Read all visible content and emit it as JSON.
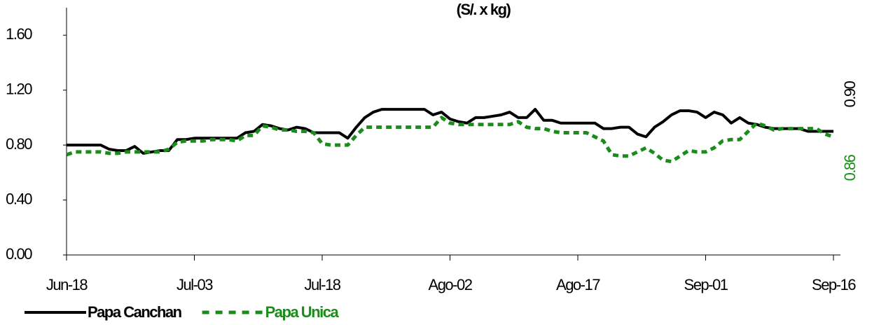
{
  "chart_data": {
    "type": "line",
    "title": "(S/. x kg)",
    "categories": [
      "Jun-18",
      null,
      null,
      null,
      null,
      null,
      null,
      null,
      null,
      null,
      null,
      null,
      null,
      null,
      null,
      "Jul-03",
      null,
      null,
      null,
      null,
      null,
      null,
      null,
      null,
      null,
      null,
      null,
      null,
      null,
      null,
      "Jul-18",
      null,
      null,
      null,
      null,
      null,
      null,
      null,
      null,
      null,
      null,
      null,
      null,
      null,
      null,
      "Ago-02",
      null,
      null,
      null,
      null,
      null,
      null,
      null,
      null,
      null,
      null,
      null,
      null,
      null,
      null,
      "Ago-17",
      null,
      null,
      null,
      null,
      null,
      null,
      null,
      null,
      null,
      null,
      null,
      null,
      null,
      null,
      "Sep-01",
      null,
      null,
      null,
      null,
      null,
      null,
      null,
      null,
      null,
      null,
      null,
      null,
      null,
      null,
      "Sep-16"
    ],
    "series": [
      {
        "name": "Papa Canchan",
        "color": "#000000",
        "dash": false,
        "values": [
          0.8,
          0.8,
          0.8,
          0.8,
          0.8,
          0.77,
          0.76,
          0.76,
          0.79,
          0.74,
          0.75,
          0.76,
          0.76,
          0.84,
          0.84,
          0.85,
          0.85,
          0.85,
          0.85,
          0.85,
          0.85,
          0.89,
          0.9,
          0.95,
          0.94,
          0.92,
          0.91,
          0.93,
          0.92,
          0.89,
          0.89,
          0.89,
          0.89,
          0.85,
          0.93,
          1.0,
          1.04,
          1.06,
          1.06,
          1.06,
          1.06,
          1.06,
          1.06,
          1.02,
          1.04,
          0.99,
          0.97,
          0.96,
          1.0,
          1.0,
          1.01,
          1.02,
          1.04,
          1.0,
          1.0,
          1.06,
          0.98,
          0.98,
          0.96,
          0.96,
          0.96,
          0.96,
          0.96,
          0.92,
          0.92,
          0.93,
          0.93,
          0.88,
          0.86,
          0.93,
          0.97,
          1.02,
          1.05,
          1.05,
          1.04,
          1.0,
          1.04,
          1.02,
          0.96,
          1.0,
          0.96,
          0.95,
          0.93,
          0.92,
          0.92,
          0.92,
          0.92,
          0.9,
          0.9,
          0.9,
          0.9
        ]
      },
      {
        "name": "Papa Unica",
        "color": "#1a8c1a",
        "dash": true,
        "values": [
          0.73,
          0.75,
          0.75,
          0.75,
          0.75,
          0.74,
          0.74,
          0.75,
          0.75,
          0.75,
          0.75,
          0.75,
          0.77,
          0.82,
          0.83,
          0.83,
          0.83,
          0.84,
          0.84,
          0.84,
          0.83,
          0.87,
          0.87,
          0.94,
          0.93,
          0.91,
          0.91,
          0.9,
          0.9,
          0.89,
          0.81,
          0.8,
          0.8,
          0.8,
          0.87,
          0.93,
          0.93,
          0.93,
          0.93,
          0.93,
          0.93,
          0.93,
          0.93,
          0.93,
          1.0,
          0.96,
          0.95,
          0.95,
          0.95,
          0.95,
          0.95,
          0.95,
          0.95,
          0.97,
          0.93,
          0.92,
          0.92,
          0.9,
          0.89,
          0.89,
          0.89,
          0.89,
          0.86,
          0.83,
          0.73,
          0.72,
          0.72,
          0.75,
          0.78,
          0.74,
          0.69,
          0.68,
          0.72,
          0.76,
          0.75,
          0.75,
          0.78,
          0.83,
          0.84,
          0.84,
          0.9,
          0.96,
          0.94,
          0.91,
          0.92,
          0.92,
          0.92,
          0.92,
          0.92,
          0.88,
          0.86
        ]
      }
    ],
    "ylim": [
      0,
      1.8
    ],
    "yticks": [
      {
        "value": 0,
        "label": "0.00"
      },
      {
        "value": 0.4,
        "label": "0.40"
      },
      {
        "value": 0.8,
        "label": "0.80"
      },
      {
        "value": 1.2,
        "label": "1.20"
      },
      {
        "value": 1.6,
        "label": "1.60"
      }
    ],
    "grid": false,
    "annotations": [
      {
        "text": "0.90",
        "color": "#000000"
      },
      {
        "text": "0.86",
        "color": "#1a8c1a"
      }
    ]
  }
}
